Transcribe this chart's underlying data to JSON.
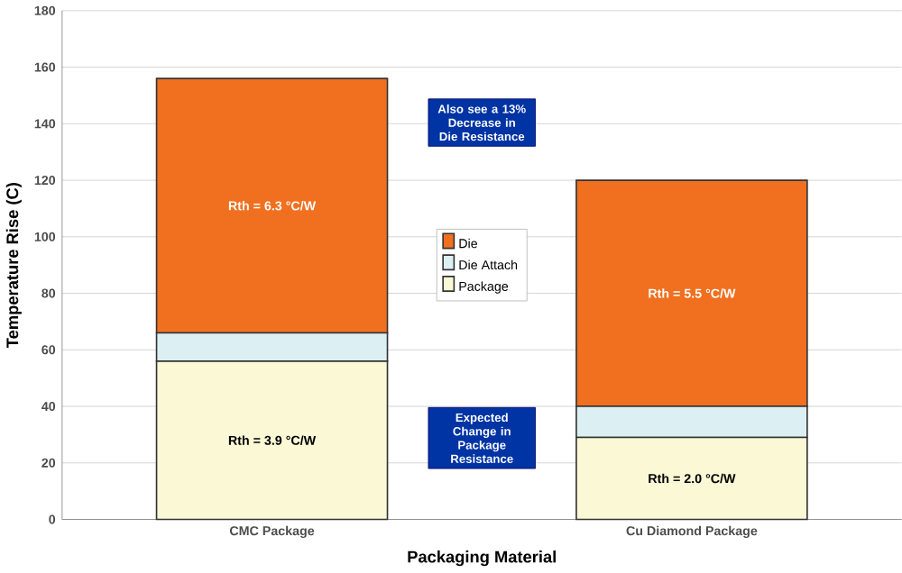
{
  "chart_data": {
    "type": "bar",
    "stacked": true,
    "xlabel": "Packaging Material",
    "ylabel": "Temperature  Rise (C)",
    "categories": [
      "CMC Package",
      "Cu Diamond Package"
    ],
    "series": [
      {
        "name": "Package",
        "color": "#fbf8d6",
        "values": [
          56,
          29
        ]
      },
      {
        "name": "Die Attach",
        "color": "#dcf0f4",
        "values": [
          10,
          11
        ]
      },
      {
        "name": "Die",
        "color": "#f07020",
        "values": [
          90,
          80
        ]
      }
    ],
    "ylim": [
      0,
      180
    ],
    "yticks": [
      0,
      20,
      40,
      60,
      80,
      100,
      120,
      140,
      160,
      180
    ],
    "grid": "y",
    "legend": "center",
    "annotations": [
      "Rth = 6.3 °C/W",
      "Rth = 3.9 °C/W",
      "Rth = 5.5 °C/W",
      "Rth = 2.0 °C/W",
      "Also see a 13% Decrease in Die Resistance",
      "Expected Change in Package Resistance"
    ]
  }
}
